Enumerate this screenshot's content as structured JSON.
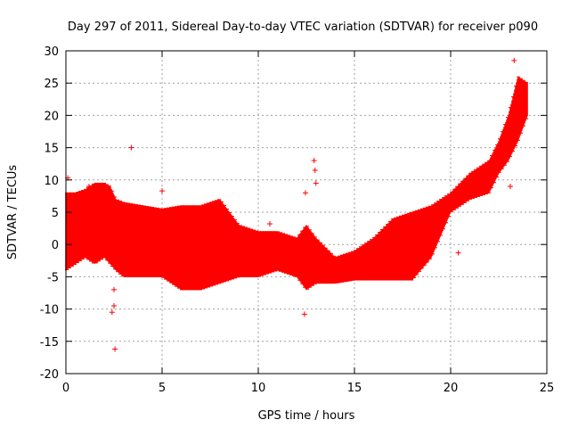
{
  "chart_data": {
    "type": "scatter",
    "title": "Day 297 of 2011, Sidereal Day-to-day VTEC variation (SDTVAR) for receiver p090",
    "xlabel": "GPS time / hours",
    "ylabel": "SDTVAR / TECUs",
    "xlim": [
      0,
      25
    ],
    "ylim": [
      -20,
      30
    ],
    "x_ticks": [
      0,
      5,
      10,
      15,
      20,
      25
    ],
    "y_ticks": [
      -20,
      -15,
      -10,
      -5,
      0,
      5,
      10,
      15,
      20,
      25,
      30
    ],
    "grid": true,
    "legend": "none",
    "marker": "+",
    "colors": {
      "series": "#ff0000",
      "axis": "#000000",
      "grid": "#a0a0a0"
    },
    "series": [
      {
        "name": "SDTVAR",
        "envelope": {
          "x": [
            0.0,
            0.5,
            1.0,
            1.5,
            2.0,
            2.3,
            2.6,
            3.0,
            4.0,
            5.0,
            6.0,
            7.0,
            8.0,
            9.0,
            10.0,
            11.0,
            12.0,
            12.5,
            13.0,
            14.0,
            15.0,
            16.0,
            17.0,
            18.0,
            19.0,
            20.0,
            21.0,
            22.0,
            22.5,
            23.0,
            23.5,
            24.0
          ],
          "upper": [
            8,
            8,
            8.5,
            9.5,
            9.5,
            9,
            7,
            6.5,
            6,
            5.5,
            6,
            6,
            7,
            3,
            2,
            2,
            1,
            3,
            1,
            -2,
            -1,
            1,
            4,
            5,
            6,
            8,
            11,
            13,
            16,
            20,
            26,
            25
          ],
          "lower": [
            -4,
            -3,
            -2,
            -3,
            -2,
            -3,
            -4,
            -5,
            -5,
            -5,
            -7,
            -7,
            -6,
            -5,
            -5,
            -4,
            -5,
            -7,
            -6,
            -6,
            -5.5,
            -5.5,
            -5.5,
            -5.5,
            -2,
            5,
            7,
            8,
            11,
            13,
            16,
            20
          ]
        },
        "outliers": [
          [
            0.1,
            10.3
          ],
          [
            1.2,
            9.0
          ],
          [
            2.4,
            -10.5
          ],
          [
            2.5,
            -9.5
          ],
          [
            2.55,
            -16.2
          ],
          [
            2.5,
            -7.0
          ],
          [
            3.4,
            15.0
          ],
          [
            5.0,
            8.3
          ],
          [
            10.6,
            3.2
          ],
          [
            12.4,
            -10.8
          ],
          [
            12.45,
            8.0
          ],
          [
            12.9,
            13.0
          ],
          [
            12.95,
            11.5
          ],
          [
            13.0,
            9.5
          ],
          [
            12.6,
            -6.0
          ],
          [
            20.4,
            -1.3
          ],
          [
            23.1,
            9.0
          ],
          [
            23.3,
            28.5
          ]
        ]
      }
    ]
  }
}
